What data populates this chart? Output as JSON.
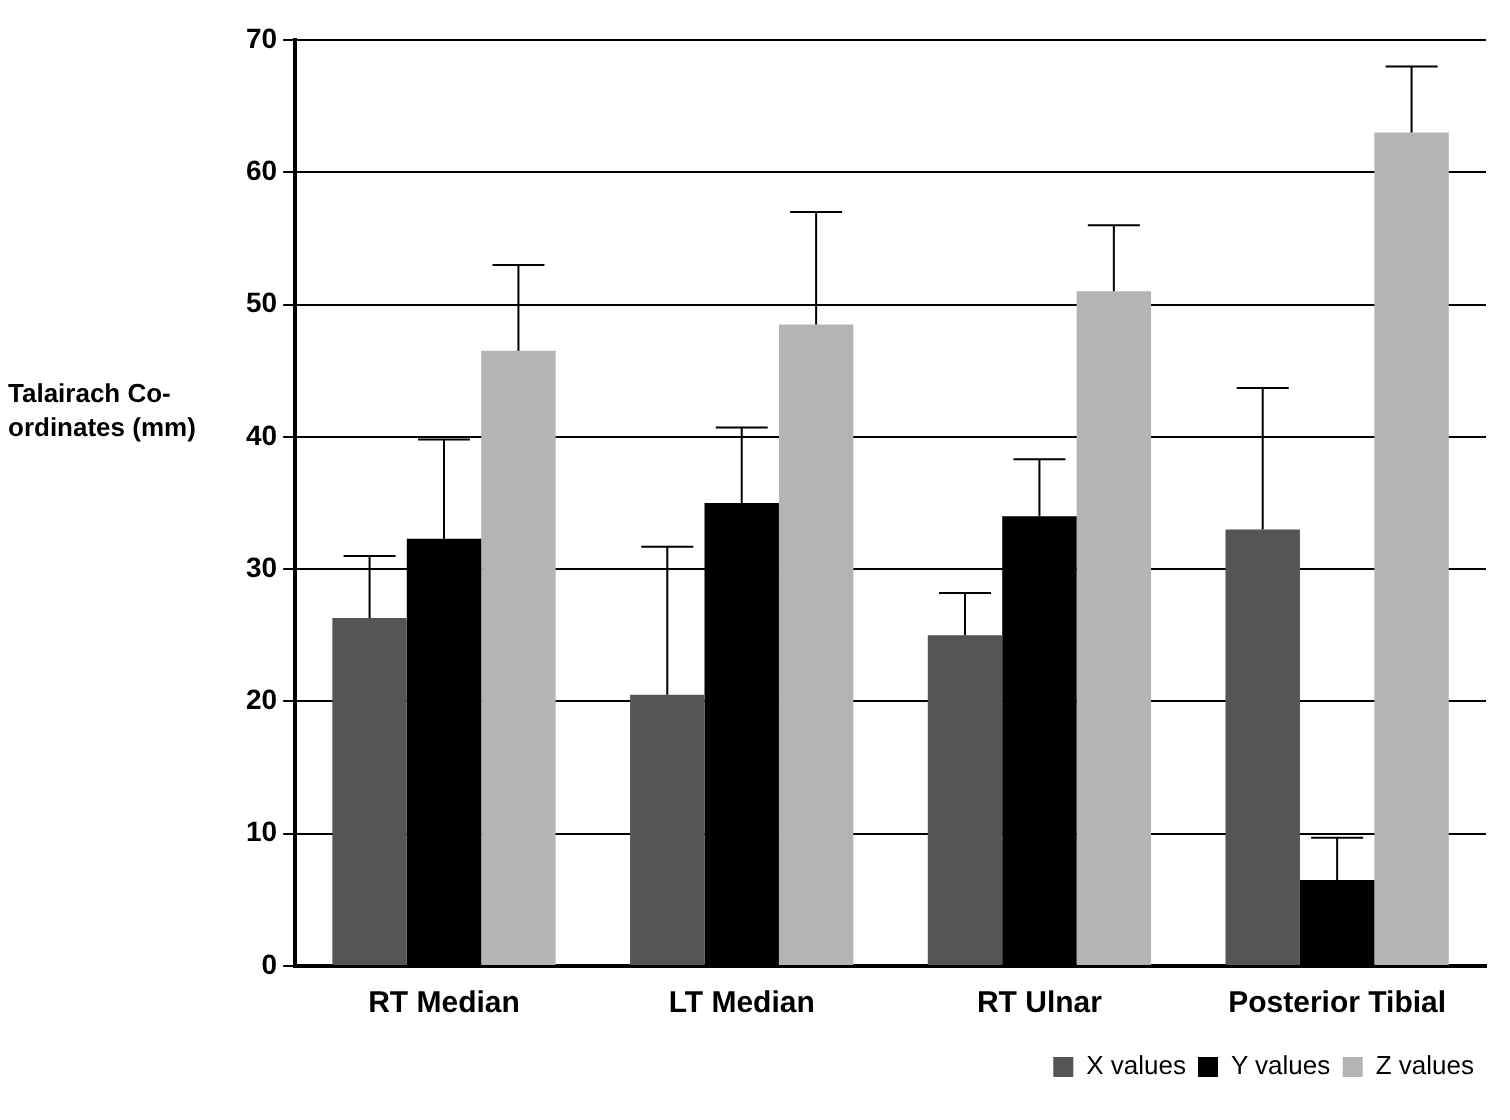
{
  "chart_data": {
    "type": "bar",
    "ylabel": "Talairach Co-ordinates (mm)",
    "categories": [
      "RT Median",
      "LT Median",
      "RT Ulnar",
      "Posterior Tibial"
    ],
    "series": [
      {
        "name": "X values",
        "color": "#555555",
        "values": [
          26.3,
          20.5,
          25,
          33
        ],
        "errors": [
          [
            26.3,
            31
          ],
          [
            20.5,
            31.7
          ],
          [
            25,
            28.2
          ],
          [
            33,
            43.7
          ]
        ]
      },
      {
        "name": "Y values",
        "color": "#000000",
        "values": [
          32.3,
          35,
          34,
          6.5
        ],
        "errors": [
          [
            32.3,
            39.8
          ],
          [
            35,
            40.7
          ],
          [
            34,
            38.3
          ],
          [
            6.5,
            9.7
          ]
        ]
      },
      {
        "name": "Z values",
        "color": "#b4b4b4",
        "values": [
          46.5,
          48.5,
          51,
          63
        ],
        "errors": [
          [
            46.5,
            53
          ],
          [
            48.5,
            57
          ],
          [
            51,
            56
          ],
          [
            63,
            68
          ]
        ]
      }
    ],
    "ylim": [
      0,
      70
    ],
    "yticks": [
      0,
      10,
      20,
      30,
      40,
      50,
      60,
      70
    ],
    "grid": "y",
    "legend": "bottom right"
  }
}
